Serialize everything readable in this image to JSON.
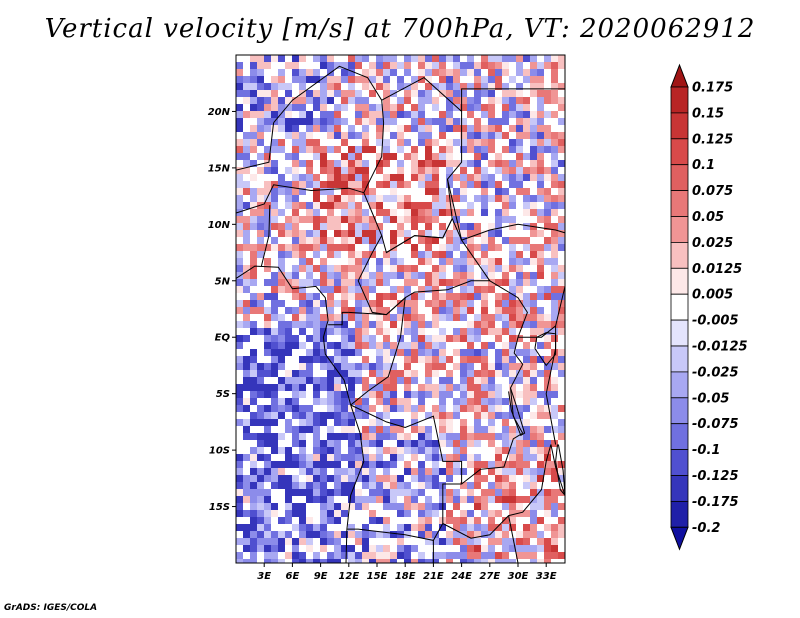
{
  "title": "Vertical velocity [m/s] at 700hPa, VT: 2020062912",
  "footer": "GrADS: IGES/COLA",
  "map": {
    "lon_range": [
      0,
      35
    ],
    "lat_range": [
      -20,
      25
    ],
    "lat_ticks": [
      "20N",
      "15N",
      "10N",
      "5N",
      "EQ",
      "5S",
      "10S",
      "15S"
    ],
    "lon_ticks": [
      "3E",
      "6E",
      "9E",
      "12E",
      "15E",
      "18E",
      "21E",
      "24E",
      "27E",
      "30E",
      "33E"
    ]
  },
  "colorbar": {
    "labels": [
      "0.175",
      "0.15",
      "0.125",
      "0.1",
      "0.075",
      "0.05",
      "0.025",
      "0.0125",
      "0.005",
      "-0.005",
      "-0.0125",
      "-0.025",
      "-0.05",
      "-0.075",
      "-0.1",
      "-0.125",
      "-0.175",
      "-0.2"
    ],
    "colors": [
      "#a01515",
      "#b82525",
      "#c83535",
      "#d84a4a",
      "#e06060",
      "#e87878",
      "#f09595",
      "#f8c0c0",
      "#fde8e8",
      "#ffffff",
      "#e4e4fd",
      "#c8c8f8",
      "#a8a8f2",
      "#8c8cea",
      "#7070e0",
      "#5050d0",
      "#3535bb",
      "#2020a8",
      "#1010a0"
    ]
  }
}
